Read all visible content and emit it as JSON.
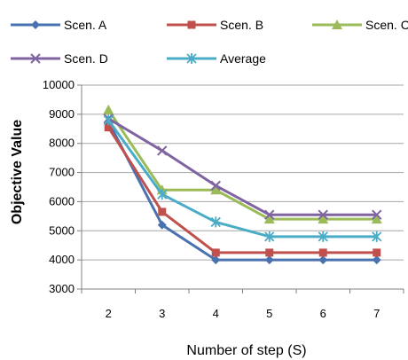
{
  "chart_data": {
    "type": "line",
    "title": "",
    "xlabel": "Number of step (S)",
    "ylabel": "Objective Value",
    "x": [
      2,
      3,
      4,
      5,
      6,
      7
    ],
    "ylim": [
      3000,
      10000
    ],
    "yticks": [
      3000,
      4000,
      5000,
      6000,
      7000,
      8000,
      9000,
      10000
    ],
    "grid": "horizontal",
    "legend": "top",
    "series": [
      {
        "name": "Scen. A",
        "color": "#4a72b0",
        "marker": "diamond",
        "values": [
          8750,
          5200,
          4000,
          4000,
          4000,
          4000
        ]
      },
      {
        "name": "Scen. B",
        "color": "#c0504d",
        "marker": "square",
        "values": [
          8550,
          5650,
          4250,
          4250,
          4250,
          4250
        ]
      },
      {
        "name": "Scen. C",
        "color": "#9bbb59",
        "marker": "triangle",
        "values": [
          9150,
          6400,
          6400,
          5400,
          5400,
          5400
        ]
      },
      {
        "name": "Scen. D",
        "color": "#8064a2",
        "marker": "x",
        "values": [
          8850,
          7750,
          6550,
          5550,
          5550,
          5550
        ]
      },
      {
        "name": "Average",
        "color": "#4bacc6",
        "marker": "star",
        "values": [
          8800,
          6250,
          5300,
          4800,
          4800,
          4800
        ]
      }
    ]
  }
}
